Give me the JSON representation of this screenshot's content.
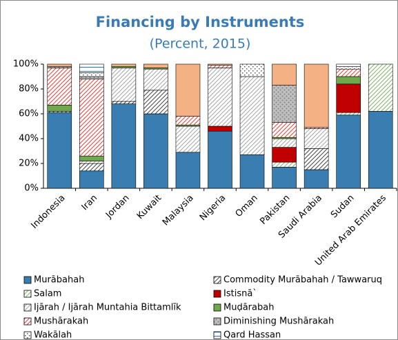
{
  "chart_data": {
    "type": "stacked_bar",
    "title": "Financing by Instruments",
    "subtitle": "(Percent, 2015)",
    "categories": [
      "Indonesia",
      "Iran",
      "Jordan",
      "Kuwait",
      "Malaysia",
      "Nigeria",
      "Oman",
      "Pakistan",
      "Saudi Arabia",
      "Sudan",
      "United Arab Emirates"
    ],
    "ylim": [
      0,
      100
    ],
    "yticks": [
      {
        "value": 0,
        "label": "0%"
      },
      {
        "value": 20,
        "label": "20%"
      },
      {
        "value": 40,
        "label": "40%"
      },
      {
        "value": 60,
        "label": "60%"
      },
      {
        "value": 80,
        "label": "80%"
      },
      {
        "value": 100,
        "label": "100%"
      }
    ],
    "series": [
      {
        "name": "Murābahah",
        "color": "#3a7db0",
        "pattern": "solid",
        "values": [
          61,
          14,
          68,
          60,
          29,
          46,
          27,
          17,
          15,
          59,
          62
        ]
      },
      {
        "name": "Commodity Murābahah / Tawwaruq",
        "color": "#444444",
        "pattern": "hatch",
        "values": [
          1,
          6,
          2,
          19,
          0,
          0,
          0,
          0,
          17,
          0,
          0
        ]
      },
      {
        "name": "Salam",
        "color": "#7fb56a",
        "pattern": "hatch",
        "values": [
          0,
          0,
          0,
          0,
          0,
          0,
          0,
          4,
          0,
          2,
          38
        ]
      },
      {
        "name": "Istisnā`",
        "color": "#c00000",
        "pattern": "solid",
        "values": [
          0,
          0,
          0,
          0,
          0,
          4,
          0,
          12,
          0,
          23,
          0
        ]
      },
      {
        "name": "Ijārah / Ijārah Muntahia Bittamlīk",
        "color": "#a6a6a6",
        "pattern": "hatch",
        "values": [
          0,
          2,
          27,
          17,
          21,
          47,
          63,
          7,
          16,
          0,
          0
        ]
      },
      {
        "name": "Muḍārabah",
        "color": "#70a84e",
        "pattern": "solid",
        "values": [
          5,
          4,
          1,
          1,
          1,
          0,
          0,
          1,
          0,
          6,
          0
        ]
      },
      {
        "name": "Mushārakah",
        "color": "#e0403a",
        "pattern": "hatch",
        "values": [
          30,
          62,
          0,
          0,
          7,
          2,
          0,
          12,
          1,
          6,
          0
        ]
      },
      {
        "name": "Diminishing Mushārakah",
        "color": "#7f7f7f",
        "pattern": "dots",
        "values": [
          1,
          2,
          0,
          0,
          0,
          0,
          0,
          30,
          0,
          0,
          0
        ]
      },
      {
        "name": "Wakālah",
        "color": "#555555",
        "pattern": "checker",
        "values": [
          0,
          3,
          0,
          0,
          0,
          0,
          10,
          0,
          0,
          2,
          0
        ]
      },
      {
        "name": "Qard Hassan",
        "color": "#3a7db0",
        "pattern": "hlines",
        "values": [
          0,
          7,
          0,
          0,
          0,
          0,
          0,
          0,
          0,
          2,
          0
        ]
      },
      {
        "name": null,
        "color": "#f4b183",
        "pattern": "solid",
        "values": [
          2,
          0,
          2,
          3,
          42,
          1,
          0,
          17,
          51,
          0,
          0
        ]
      }
    ]
  }
}
